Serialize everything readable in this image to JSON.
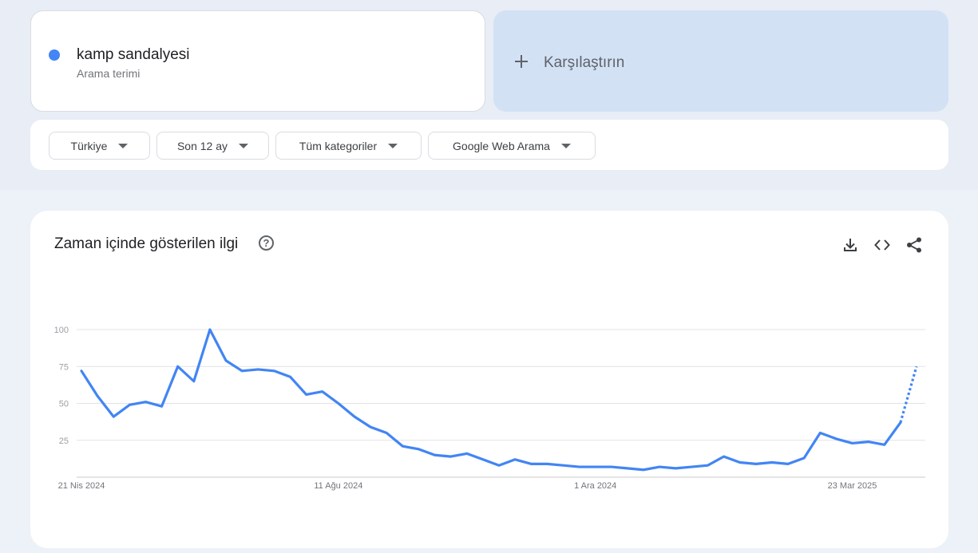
{
  "term": {
    "name": "kamp sandalyesi",
    "subtitle": "Arama terimi",
    "color": "#4285f4",
    "compare_label": "Karşılaştırın"
  },
  "filters": [
    {
      "label": "Türkiye"
    },
    {
      "label": "Son 12 ay"
    },
    {
      "label": "Tüm kategoriler"
    },
    {
      "label": "Google Web Arama"
    }
  ],
  "chart_section": {
    "title": "Zaman içinde gösterilen ilgi",
    "help_icon": "help-circle-icon",
    "actions": [
      "download-icon",
      "embed-code-icon",
      "share-icon"
    ]
  },
  "chart_data": {
    "type": "line",
    "title": "",
    "xlabel": "",
    "ylabel": "",
    "ylim": [
      0,
      100
    ],
    "yticks": [
      25,
      50,
      75,
      100
    ],
    "xticks": [
      {
        "label": "21 Nis 2024",
        "index": 0
      },
      {
        "label": "11 Ağu 2024",
        "index": 16
      },
      {
        "label": "1 Ara 2024",
        "index": 32
      },
      {
        "label": "23 Mar 2025",
        "index": 48
      }
    ],
    "grid": true,
    "series": [
      {
        "color": "#4285f4",
        "values": [
          72,
          55,
          41,
          49,
          51,
          48,
          75,
          65,
          100,
          79,
          72,
          73,
          72,
          68,
          56,
          58,
          50,
          41,
          34,
          30,
          21,
          19,
          15,
          14,
          16,
          12,
          8,
          12,
          9,
          9,
          8,
          7,
          7,
          7,
          6,
          5,
          7,
          6,
          7,
          8,
          14,
          10,
          9,
          10,
          9,
          13,
          30,
          26,
          23,
          24,
          22,
          37,
          75
        ],
        "partial_from_index": 51
      }
    ]
  }
}
